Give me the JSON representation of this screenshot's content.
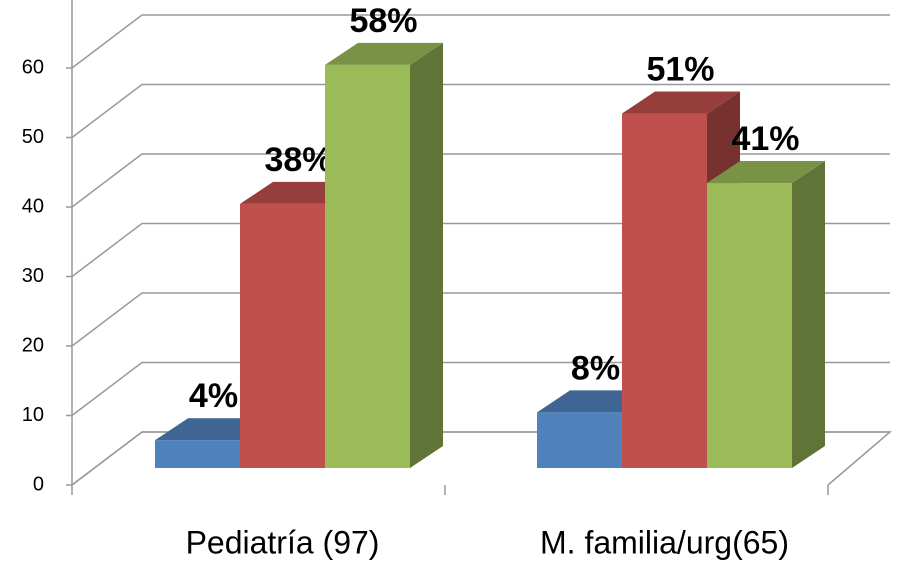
{
  "chart_data": {
    "type": "bar3d",
    "categories": [
      "Pediatría (97)",
      "M. familia/urg(65)"
    ],
    "series": [
      {
        "color": "#4f81bd",
        "values": [
          4,
          8
        ],
        "value_labels": [
          "4%",
          "8%"
        ]
      },
      {
        "color": "#c0504d",
        "values": [
          38,
          51
        ],
        "value_labels": [
          "38%",
          "51%"
        ]
      },
      {
        "color": "#9bbb59",
        "values": [
          58,
          41
        ],
        "value_labels": [
          "58%",
          "41%"
        ]
      }
    ],
    "ylim": [
      0,
      70
    ],
    "yticks": [
      0,
      10,
      20,
      30,
      40,
      50,
      60
    ],
    "grid": true
  }
}
